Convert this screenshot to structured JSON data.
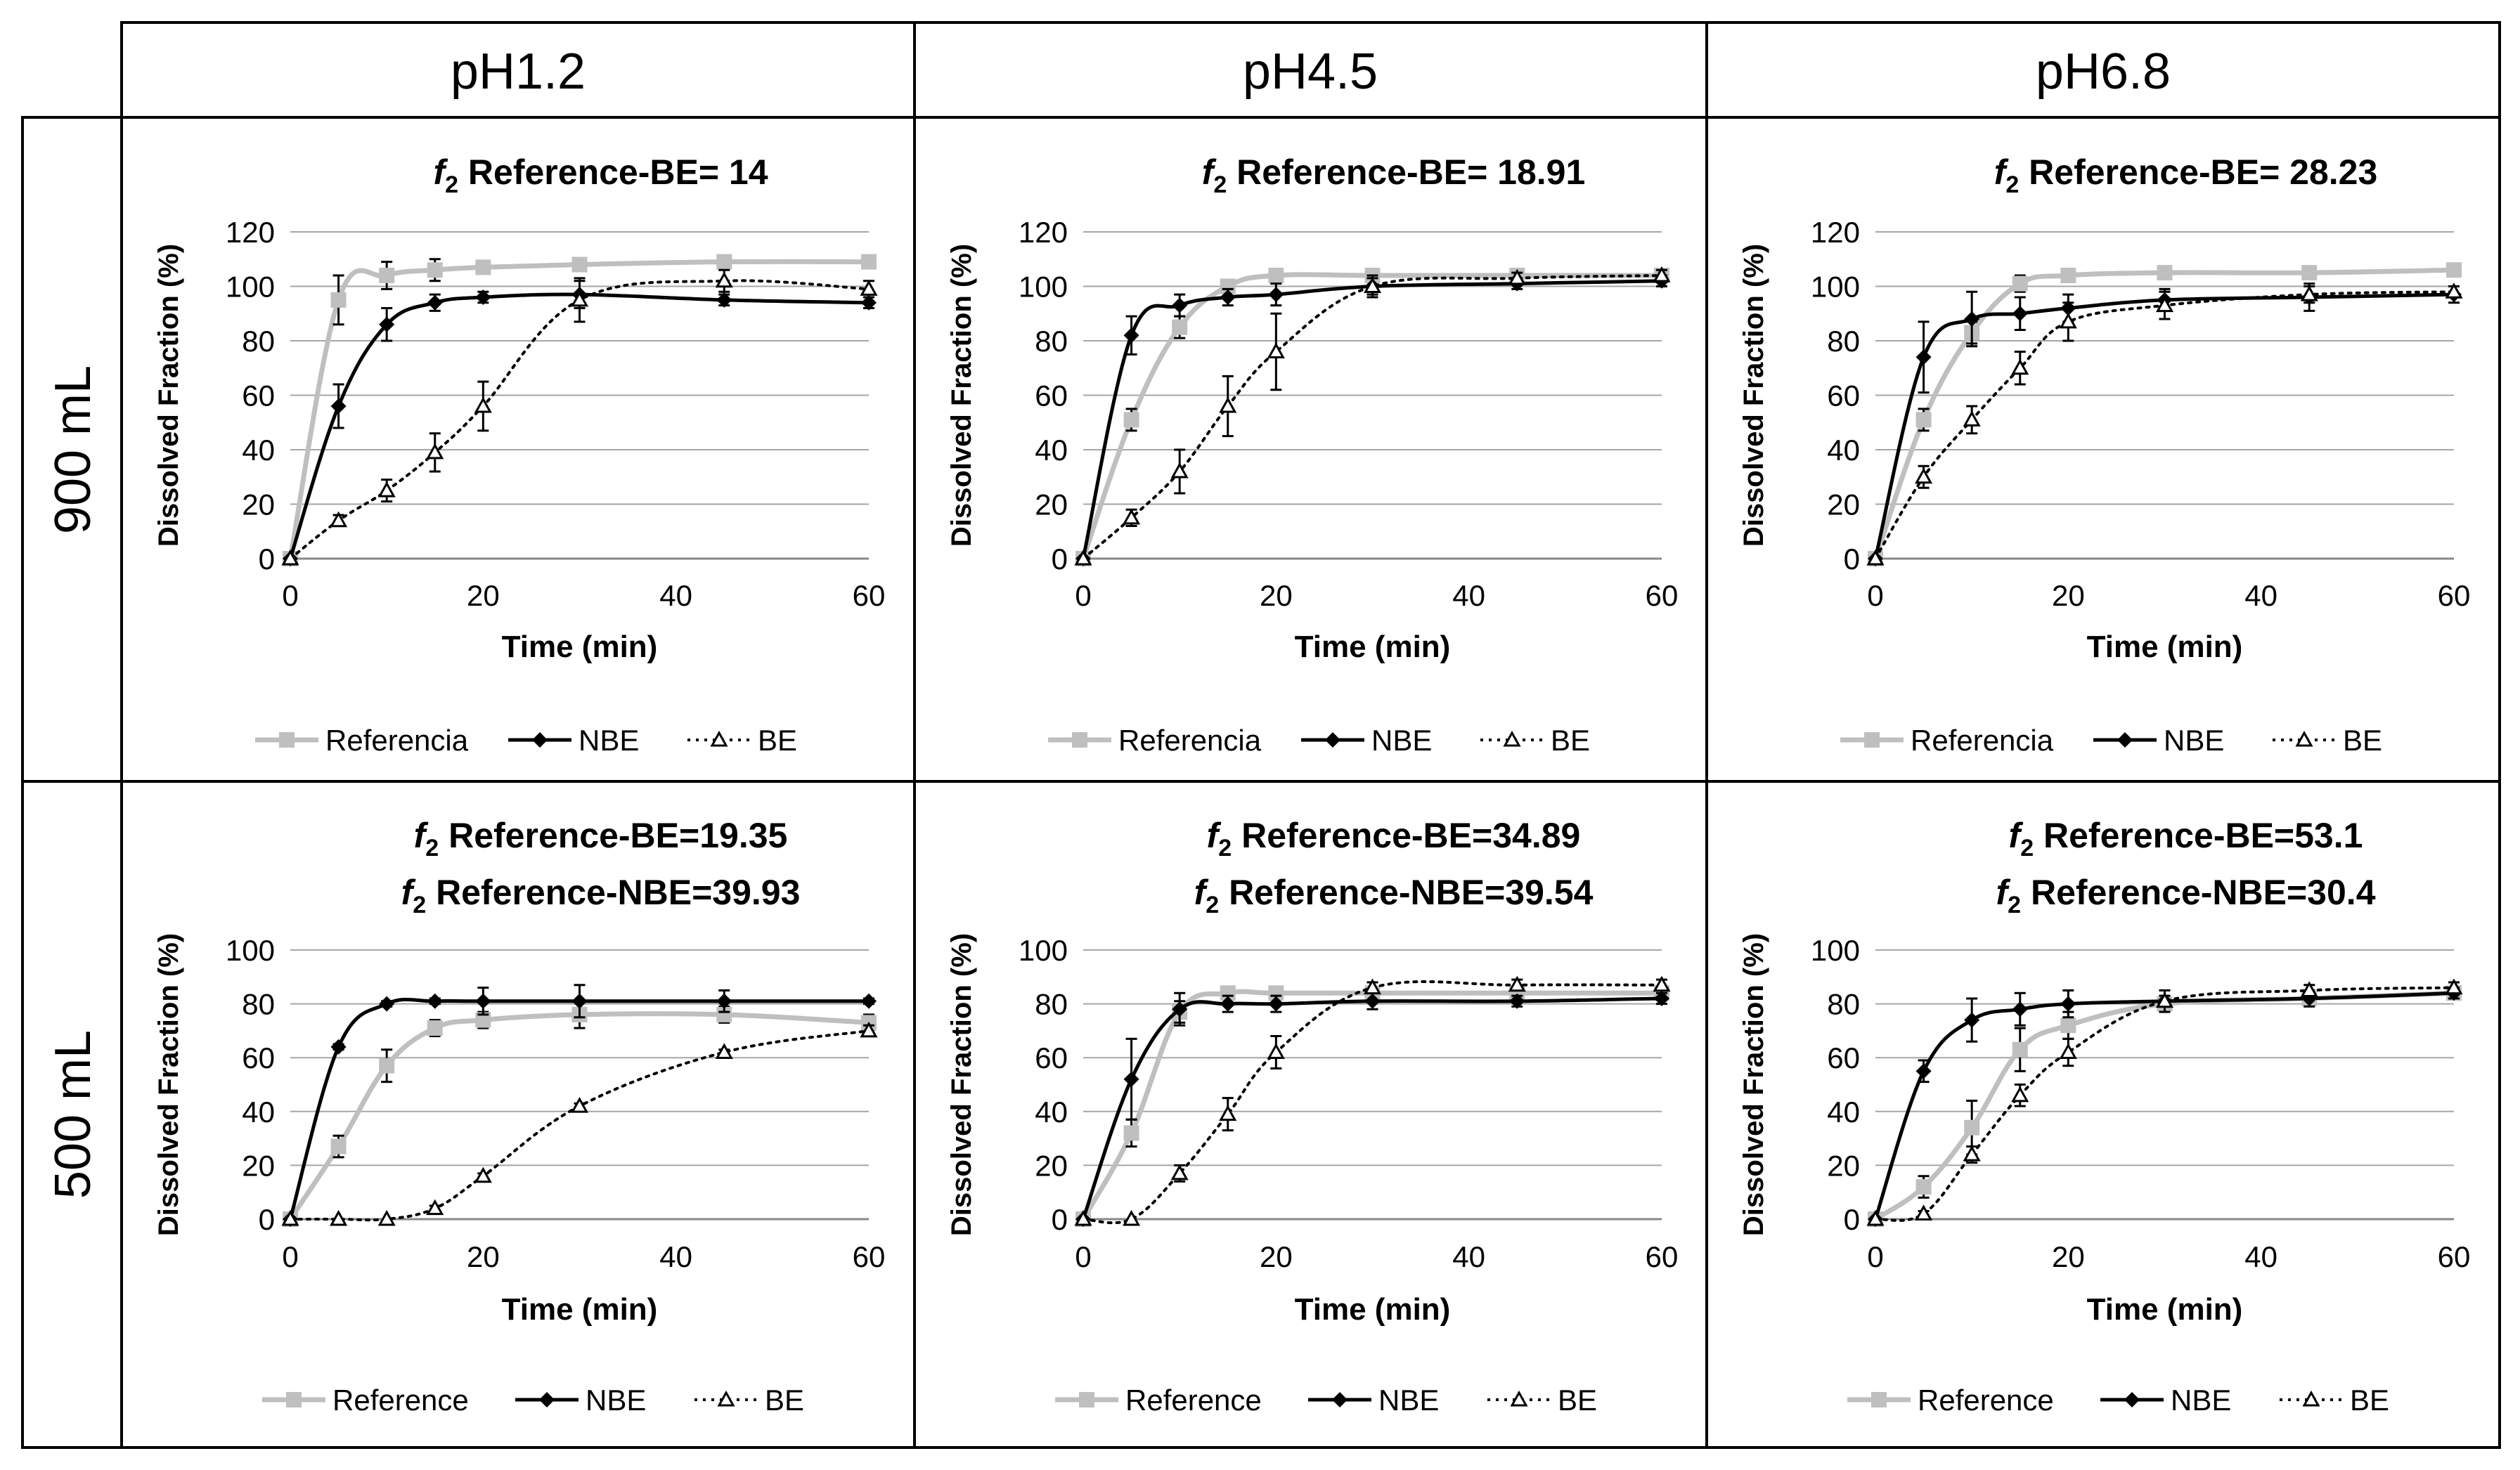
{
  "columns": [
    "pH1.2",
    "pH4.5",
    "pH6.8"
  ],
  "rows": [
    "900 mL",
    "500 mL"
  ],
  "colors": {
    "reference": "#bfbfbf",
    "nbe": "#000000",
    "be": "#000000",
    "grid": "#a6a6a6",
    "border": "#000000"
  },
  "chart_data": [
    {
      "type": "line",
      "id": "900-ph12",
      "title": [
        [
          [
            "f",
            "2"
          ],
          " Reference-BE= 14"
        ]
      ],
      "xlabel": "Time (min)",
      "ylabel": "Dissolved Fraction (%)",
      "xlim": [
        0,
        60
      ],
      "ylim": [
        0,
        120
      ],
      "xticks": [
        0,
        20,
        40,
        60
      ],
      "yticks": [
        0,
        20,
        40,
        60,
        80,
        100,
        120
      ],
      "legend": [
        "Referencia",
        "NBE",
        "BE"
      ],
      "x": [
        0,
        5,
        10,
        15,
        20,
        30,
        45,
        60
      ],
      "series": [
        {
          "name": "Referencia",
          "values": [
            0,
            95,
            104,
            106,
            107,
            108,
            109,
            109
          ],
          "err": [
            0,
            9,
            5,
            4,
            2,
            2,
            2,
            2
          ]
        },
        {
          "name": "NBE",
          "values": [
            0,
            56,
            86,
            94,
            96,
            97,
            95,
            94
          ],
          "err": [
            0,
            8,
            6,
            3,
            2,
            5,
            2,
            2
          ]
        },
        {
          "name": "BE",
          "values": [
            0,
            14,
            25,
            39,
            56,
            95,
            102,
            99
          ],
          "err": [
            0,
            2,
            4,
            7,
            9,
            8,
            4,
            3
          ]
        }
      ]
    },
    {
      "type": "line",
      "id": "900-ph45",
      "title": [
        [
          [
            "f",
            "2"
          ],
          " Reference-BE= 18.91"
        ]
      ],
      "xlabel": "Time (min)",
      "ylabel": "Dissolved Fraction (%)",
      "xlim": [
        0,
        60
      ],
      "ylim": [
        0,
        120
      ],
      "xticks": [
        0,
        20,
        40,
        60
      ],
      "yticks": [
        0,
        20,
        40,
        60,
        80,
        100,
        120
      ],
      "legend": [
        "Referencia",
        "NBE",
        "BE"
      ],
      "x": [
        0,
        5,
        10,
        15,
        20,
        30,
        45,
        60
      ],
      "series": [
        {
          "name": "Referencia",
          "values": [
            0,
            51,
            85,
            100,
            104,
            104,
            104,
            104
          ],
          "err": [
            0,
            4,
            4,
            2,
            2,
            2,
            2,
            2
          ]
        },
        {
          "name": "NBE",
          "values": [
            0,
            82,
            93,
            96,
            97,
            100,
            101,
            102
          ],
          "err": [
            0,
            7,
            4,
            3,
            4,
            3,
            2,
            2
          ]
        },
        {
          "name": "BE",
          "values": [
            0,
            15,
            32,
            56,
            76,
            100,
            103,
            104
          ],
          "err": [
            0,
            3,
            8,
            11,
            14,
            4,
            2,
            2
          ]
        }
      ]
    },
    {
      "type": "line",
      "id": "900-ph68",
      "title": [
        [
          [
            "f",
            "2"
          ],
          " Reference-BE= 28.23"
        ]
      ],
      "xlabel": "Time (min)",
      "ylabel": "Dissolved Fraction (%)",
      "xlim": [
        0,
        60
      ],
      "ylim": [
        0,
        120
      ],
      "xticks": [
        0,
        20,
        40,
        60
      ],
      "yticks": [
        0,
        20,
        40,
        60,
        80,
        100,
        120
      ],
      "legend": [
        "Referencia",
        "NBE",
        "BE"
      ],
      "x": [
        0,
        5,
        10,
        15,
        20,
        30,
        45,
        60
      ],
      "series": [
        {
          "name": "Referencia",
          "values": [
            0,
            51,
            83,
            101,
            104,
            105,
            105,
            106
          ],
          "err": [
            0,
            4,
            4,
            3,
            2,
            2,
            2,
            2
          ]
        },
        {
          "name": "NBE",
          "values": [
            0,
            74,
            88,
            90,
            92,
            95,
            96,
            97
          ],
          "err": [
            0,
            13,
            10,
            6,
            5,
            4,
            5,
            3
          ]
        },
        {
          "name": "BE",
          "values": [
            0,
            30,
            51,
            70,
            87,
            93,
            97,
            98
          ],
          "err": [
            0,
            4,
            5,
            6,
            7,
            5,
            3,
            2
          ]
        }
      ]
    },
    {
      "type": "line",
      "id": "500-ph12",
      "title": [
        [
          [
            "f",
            "2"
          ],
          " Reference-BE=19.35"
        ],
        [
          [
            "f",
            "2"
          ],
          " Reference-NBE=39.93"
        ]
      ],
      "xlabel": "Time (min)",
      "ylabel": "Dissolved Fraction (%)",
      "xlim": [
        0,
        60
      ],
      "ylim": [
        0,
        100
      ],
      "xticks": [
        0,
        20,
        40,
        60
      ],
      "yticks": [
        0,
        20,
        40,
        60,
        80,
        100
      ],
      "legend": [
        "Reference",
        "NBE",
        "BE"
      ],
      "x": [
        0,
        5,
        10,
        15,
        20,
        30,
        45,
        60
      ],
      "series": [
        {
          "name": "Reference",
          "values": [
            0,
            27,
            57,
            71,
            74,
            76,
            76,
            73
          ],
          "err": [
            0,
            4,
            6,
            3,
            3,
            5,
            3,
            3
          ]
        },
        {
          "name": "NBE",
          "values": [
            0,
            64,
            80,
            81,
            81,
            81,
            81,
            81
          ],
          "err": [
            0,
            1,
            1,
            1,
            5,
            6,
            4,
            1
          ]
        },
        {
          "name": "BE",
          "values": [
            0,
            0,
            0,
            4,
            16,
            42,
            62,
            70
          ],
          "err": [
            0,
            0,
            0,
            1,
            1,
            1,
            1,
            2
          ]
        }
      ]
    },
    {
      "type": "line",
      "id": "500-ph45",
      "title": [
        [
          [
            "f",
            "2"
          ],
          " Reference-BE=34.89"
        ],
        [
          [
            "f",
            "2"
          ],
          " Reference-NBE=39.54"
        ]
      ],
      "xlabel": "Time (min)",
      "ylabel": "Dissolved Fraction (%)",
      "xlim": [
        0,
        60
      ],
      "ylim": [
        0,
        100
      ],
      "xticks": [
        0,
        20,
        40,
        60
      ],
      "yticks": [
        0,
        20,
        40,
        60,
        80,
        100
      ],
      "legend": [
        "Reference",
        "NBE",
        "BE"
      ],
      "x": [
        0,
        5,
        10,
        15,
        20,
        30,
        45,
        60
      ],
      "series": [
        {
          "name": "Reference",
          "values": [
            0,
            32,
            77,
            84,
            84,
            84,
            84,
            84
          ],
          "err": [
            0,
            5,
            4,
            2,
            2,
            2,
            2,
            2
          ]
        },
        {
          "name": "NBE",
          "values": [
            0,
            52,
            78,
            80,
            80,
            81,
            81,
            82
          ],
          "err": [
            0,
            15,
            6,
            3,
            3,
            3,
            2,
            2
          ]
        },
        {
          "name": "BE",
          "values": [
            0,
            0,
            17,
            39,
            62,
            86,
            87,
            87
          ],
          "err": [
            0,
            0,
            3,
            6,
            6,
            2,
            2,
            2
          ]
        }
      ]
    },
    {
      "type": "line",
      "id": "500-ph68",
      "title": [
        [
          [
            "f",
            "2"
          ],
          " Reference-BE=53.1"
        ],
        [
          [
            "f",
            "2"
          ],
          " Reference-NBE=30.4"
        ]
      ],
      "xlabel": "Time (min)",
      "ylabel": "Dissolved Fraction (%)",
      "xlim": [
        0,
        60
      ],
      "ylim": [
        0,
        100
      ],
      "xticks": [
        0,
        20,
        40,
        60
      ],
      "yticks": [
        0,
        20,
        40,
        60,
        80,
        100
      ],
      "legend": [
        "Reference",
        "NBE",
        "BE"
      ],
      "x": [
        0,
        5,
        10,
        15,
        20,
        30,
        45,
        60
      ],
      "series": [
        {
          "name": "Reference",
          "values": [
            0,
            12,
            34,
            63,
            72,
            80,
            82,
            84
          ],
          "err": [
            0,
            4,
            10,
            8,
            5,
            2,
            2,
            2
          ]
        },
        {
          "name": "NBE",
          "values": [
            0,
            55,
            74,
            78,
            80,
            81,
            82,
            84
          ],
          "err": [
            0,
            4,
            8,
            6,
            5,
            4,
            3,
            2
          ]
        },
        {
          "name": "BE",
          "values": [
            0,
            2,
            24,
            46,
            62,
            81,
            85,
            86
          ],
          "err": [
            0,
            1,
            3,
            4,
            5,
            2,
            2,
            2
          ]
        }
      ]
    }
  ]
}
